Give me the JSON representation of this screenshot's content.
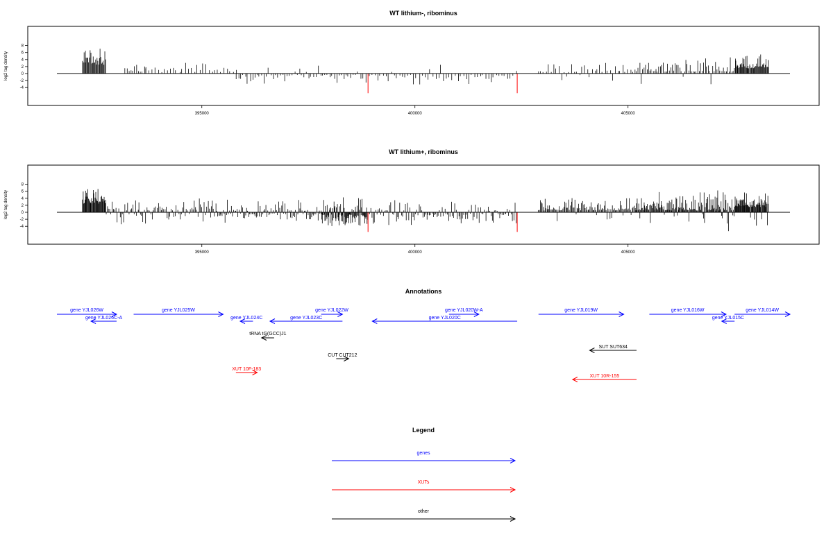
{
  "colors": {
    "genes": "#0000ff",
    "xuts": "#ff0000",
    "other": "#000000",
    "axis": "#000000",
    "highlight": "#ff0000"
  },
  "chart_data": [
    {
      "type": "bar",
      "title": "WT lithium-, ribominus",
      "ylabel": "log2 tag density",
      "xlim": [
        391600,
        408800
      ],
      "ylim": [
        -6.0,
        9.0
      ],
      "yticks": [
        -4,
        -2,
        0,
        2,
        4,
        6,
        8
      ],
      "xticks": [
        395000,
        400000,
        405000
      ],
      "grid": false,
      "density": "sparse",
      "highlight_bars": [
        {
          "x": 398900,
          "value": -5.6
        },
        {
          "x": 402400,
          "value": -5.6
        }
      ],
      "segments": [
        {
          "x0": 392200,
          "x1": 392750,
          "step": 18,
          "ymin": 2.5,
          "ymax": 8.3,
          "neg": 0
        },
        {
          "x0": 393200,
          "x1": 393700,
          "step": 45,
          "ymin": 0.5,
          "ymax": 3.5,
          "neg": 0.1
        },
        {
          "x0": 393700,
          "x1": 395800,
          "step": 70,
          "ymin": 0.4,
          "ymax": 3.8,
          "neg": 0
        },
        {
          "x0": 395800,
          "x1": 398600,
          "step": 55,
          "ymin": 0.4,
          "ymax": 4.0,
          "neg": 0.85
        },
        {
          "x0": 398600,
          "x1": 402400,
          "step": 65,
          "ymin": 0.4,
          "ymax": 3.8,
          "neg": 0.9
        },
        {
          "x0": 402900,
          "x1": 405200,
          "step": 60,
          "ymin": 0.4,
          "ymax": 4.0,
          "neg": 0.05
        },
        {
          "x0": 405200,
          "x1": 407500,
          "step": 35,
          "ymin": 0.5,
          "ymax": 5.0,
          "neg": 0.06
        },
        {
          "x0": 407500,
          "x1": 408300,
          "step": 16,
          "ymin": 1.5,
          "ymax": 7.0,
          "neg": 0
        }
      ]
    },
    {
      "type": "bar",
      "title": "WT lithium+, ribominus",
      "ylabel": "log2 tag density",
      "xlim": [
        391600,
        408800
      ],
      "ylim": [
        -6.0,
        9.0
      ],
      "yticks": [
        -4,
        -2,
        0,
        2,
        4,
        6,
        8
      ],
      "xticks": [
        395000,
        400000,
        405000
      ],
      "grid": false,
      "density": "dense",
      "highlight_bars": [
        {
          "x": 398900,
          "value": -5.6
        },
        {
          "x": 402400,
          "value": -5.6
        }
      ],
      "segments": [
        {
          "x0": 392200,
          "x1": 392750,
          "step": 14,
          "ymin": 2.5,
          "ymax": 8.3,
          "neg": 0
        },
        {
          "x0": 392750,
          "x1": 395200,
          "step": 30,
          "ymin": 0.5,
          "ymax": 4.5,
          "neg": 0.3
        },
        {
          "x0": 395200,
          "x1": 397800,
          "step": 25,
          "ymin": 0.4,
          "ymax": 4.0,
          "neg": 0.6
        },
        {
          "x0": 397800,
          "x1": 398900,
          "step": 12,
          "ymin": 0.5,
          "ymax": 5.2,
          "neg": 0.75
        },
        {
          "x0": 398900,
          "x1": 402400,
          "step": 30,
          "ymin": 0.4,
          "ymax": 4.5,
          "neg": 0.65
        },
        {
          "x0": 402900,
          "x1": 405200,
          "step": 22,
          "ymin": 0.5,
          "ymax": 4.5,
          "neg": 0.12
        },
        {
          "x0": 405200,
          "x1": 407500,
          "step": 16,
          "ymin": 0.5,
          "ymax": 7.0,
          "neg": 0.1
        },
        {
          "x0": 407500,
          "x1": 408300,
          "step": 12,
          "ymin": 1.5,
          "ymax": 7.0,
          "neg": 0.05
        }
      ]
    }
  ],
  "annotations": {
    "title": "Annotations",
    "items": [
      {
        "label": "gene YJL026W",
        "category": "genes",
        "x0": 391600,
        "x1": 393000,
        "dir": "right",
        "row": 0
      },
      {
        "label": "gene YJL026C-A",
        "category": "genes",
        "x0": 392400,
        "x1": 393000,
        "dir": "left",
        "row": 1
      },
      {
        "label": "gene YJL025W",
        "category": "genes",
        "x0": 393400,
        "x1": 395500,
        "dir": "right",
        "row": 0
      },
      {
        "label": "gene YJL024C",
        "category": "genes",
        "x0": 395900,
        "x1": 396200,
        "dir": "left",
        "row": 1
      },
      {
        "label": "gene YJL022W",
        "category": "genes",
        "x0": 397800,
        "x1": 398300,
        "dir": "right",
        "row": 0
      },
      {
        "label": "gene YJL023C",
        "category": "genes",
        "x0": 396600,
        "x1": 398300,
        "dir": "left",
        "row": 1
      },
      {
        "label": "gene YJL020W-A",
        "category": "genes",
        "x0": 400800,
        "x1": 401500,
        "dir": "right",
        "row": 0
      },
      {
        "label": "gene YJL020C",
        "category": "genes",
        "x0": 399000,
        "x1": 402400,
        "dir": "left",
        "row": 1
      },
      {
        "label": "gene YJL019W",
        "category": "genes",
        "x0": 402900,
        "x1": 404900,
        "dir": "right",
        "row": 0
      },
      {
        "label": "gene YJL016W",
        "category": "genes",
        "x0": 405500,
        "x1": 407300,
        "dir": "right",
        "row": 0
      },
      {
        "label": "gene YJL015C",
        "category": "genes",
        "x0": 407200,
        "x1": 407500,
        "dir": "left",
        "row": 1
      },
      {
        "label": "gene YJL014W",
        "category": "genes",
        "x0": 407500,
        "x1": 408800,
        "dir": "right",
        "row": 0
      },
      {
        "label": "tRNA tG(GCC)J1",
        "category": "other",
        "x0": 396500,
        "x1": 396600,
        "dir": "left",
        "row": 2
      },
      {
        "label": "SUT SUT634",
        "category": "other",
        "x0": 404100,
        "x1": 405200,
        "dir": "left",
        "row": 3
      },
      {
        "label": "CUT CUT212",
        "category": "other",
        "x0": 398200,
        "x1": 398400,
        "dir": "right",
        "row": 4
      },
      {
        "label": "XUT 10F-183",
        "category": "xuts",
        "x0": 395800,
        "x1": 396300,
        "dir": "right",
        "row": 5
      },
      {
        "label": "XUT 10R-155",
        "category": "xuts",
        "x0": 403700,
        "x1": 405200,
        "dir": "left",
        "row": 6
      }
    ]
  },
  "legend": {
    "title": "Legend",
    "items": [
      {
        "label": "genes",
        "category": "genes"
      },
      {
        "label": "XUTs",
        "category": "xuts"
      },
      {
        "label": "other",
        "category": "other"
      }
    ]
  }
}
